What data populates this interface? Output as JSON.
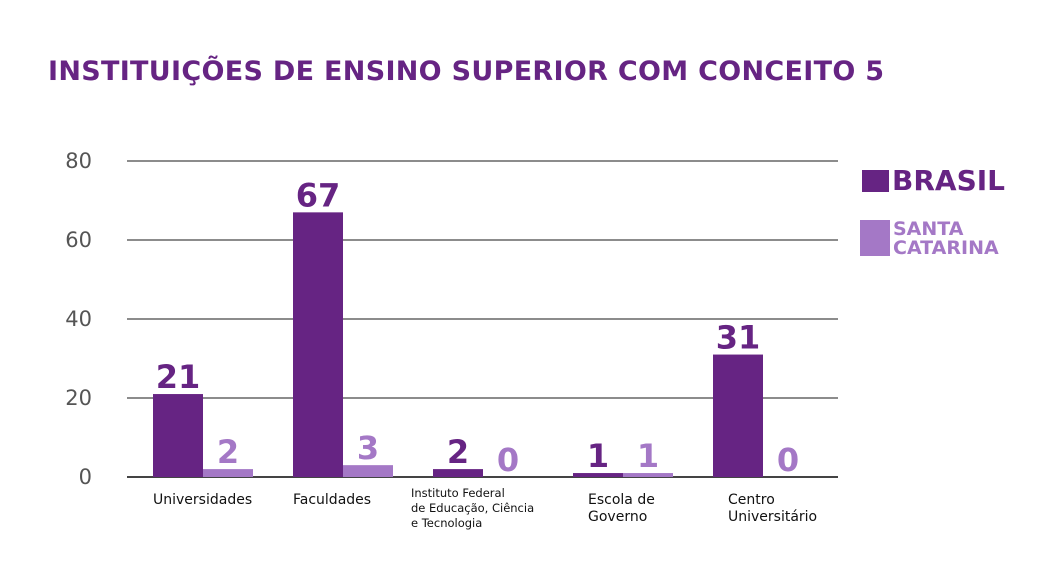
{
  "chart_data": {
    "type": "bar",
    "title": "INSTITUIÇÕES DE ENSINO SUPERIOR COM CONCEITO 5",
    "categories": [
      [
        "Universidades"
      ],
      [
        "Faculdades"
      ],
      [
        "Instituto Federal",
        "de Educação, Ciência",
        "e Tecnologia"
      ],
      [
        "Escola de",
        "Governo"
      ],
      [
        "Centro",
        "Universitário"
      ]
    ],
    "series": [
      {
        "name": "BRASIL",
        "color": "#662483",
        "values": [
          21,
          67,
          2,
          1,
          31
        ]
      },
      {
        "name": "SANTA CATARINA",
        "color": "#a478c6",
        "values": [
          2,
          3,
          0,
          1,
          0
        ]
      }
    ],
    "ylim": [
      0,
      80
    ],
    "yticks": [
      0,
      20,
      40,
      60,
      80
    ],
    "grid": true,
    "legend": "right"
  }
}
